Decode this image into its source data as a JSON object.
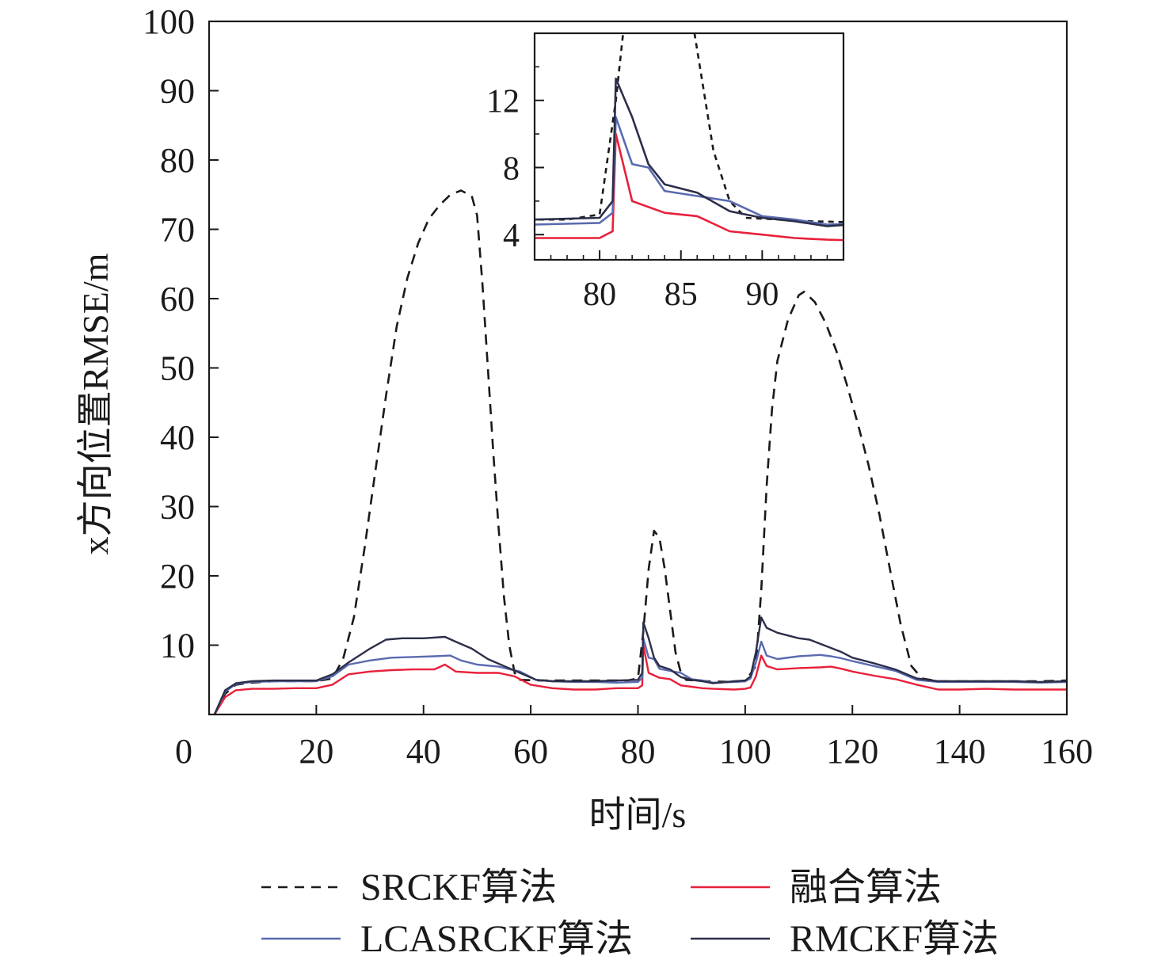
{
  "chart_data": {
    "type": "line",
    "xlabel": "时间/s",
    "ylabel": "x方向位置RMSE/m",
    "xlim": [
      0,
      160
    ],
    "ylim": [
      0,
      100
    ],
    "xticks": [
      0,
      20,
      40,
      60,
      80,
      100,
      120,
      140,
      160
    ],
    "yticks": [
      10,
      20,
      30,
      40,
      50,
      60,
      70,
      80,
      90,
      100
    ],
    "grid": false,
    "legend": {
      "placement": "bottom",
      "columns": 2,
      "entries": [
        {
          "name": "SRCKF算法",
          "color": "#1a1a1a",
          "dash": "dashed"
        },
        {
          "name": "融合算法",
          "color": "#e8203a",
          "dash": "solid"
        },
        {
          "name": "LCASRCKF算法",
          "color": "#5b6bb0",
          "dash": "solid"
        },
        {
          "name": "RMCKF算法",
          "color": "#2c2f4a",
          "dash": "solid"
        }
      ]
    },
    "series": [
      {
        "name": "SRCKF算法",
        "color": "#1a1a1a",
        "dash": "dashed",
        "points": [
          [
            1,
            0
          ],
          [
            3,
            3
          ],
          [
            5,
            4.3
          ],
          [
            8,
            4.6
          ],
          [
            12,
            4.8
          ],
          [
            16,
            4.8
          ],
          [
            20,
            4.8
          ],
          [
            23,
            5.2
          ],
          [
            25,
            8
          ],
          [
            27,
            14
          ],
          [
            29,
            24
          ],
          [
            31,
            35
          ],
          [
            33,
            46
          ],
          [
            35,
            56
          ],
          [
            37,
            63
          ],
          [
            39,
            68
          ],
          [
            41,
            71.5
          ],
          [
            43,
            73.5
          ],
          [
            45,
            75
          ],
          [
            47,
            75.6
          ],
          [
            49,
            74.8
          ],
          [
            50,
            72
          ],
          [
            51,
            62
          ],
          [
            52,
            50
          ],
          [
            53,
            38
          ],
          [
            54,
            27
          ],
          [
            55,
            17
          ],
          [
            56,
            10
          ],
          [
            57,
            6
          ],
          [
            58,
            5
          ],
          [
            62,
            4.9
          ],
          [
            66,
            4.9
          ],
          [
            70,
            4.9
          ],
          [
            74,
            4.9
          ],
          [
            78,
            4.9
          ],
          [
            80,
            5.2
          ],
          [
            81,
            12
          ],
          [
            82,
            21
          ],
          [
            83,
            26.5
          ],
          [
            84,
            25.5
          ],
          [
            85,
            21
          ],
          [
            86,
            15
          ],
          [
            87,
            9
          ],
          [
            88,
            6
          ],
          [
            89,
            5
          ],
          [
            93,
            4.8
          ],
          [
            97,
            4.7
          ],
          [
            100,
            4.8
          ],
          [
            102,
            7
          ],
          [
            103,
            18
          ],
          [
            104,
            33
          ],
          [
            105,
            44
          ],
          [
            106,
            51
          ],
          [
            108,
            57
          ],
          [
            110,
            60.5
          ],
          [
            111,
            61
          ],
          [
            113,
            59.5
          ],
          [
            115,
            56.5
          ],
          [
            117,
            52.5
          ],
          [
            119,
            47.5
          ],
          [
            121,
            42
          ],
          [
            123,
            36
          ],
          [
            125,
            29
          ],
          [
            127,
            21
          ],
          [
            129,
            13
          ],
          [
            131,
            7
          ],
          [
            133,
            5.2
          ],
          [
            136,
            4.8
          ],
          [
            140,
            4.8
          ],
          [
            145,
            4.8
          ],
          [
            150,
            4.8
          ],
          [
            155,
            4.8
          ],
          [
            160,
            4.9
          ]
        ]
      },
      {
        "name": "融合算法",
        "color": "#e8203a",
        "dash": "solid",
        "points": [
          [
            1,
            0
          ],
          [
            3,
            2.5
          ],
          [
            5,
            3.5
          ],
          [
            8,
            3.7
          ],
          [
            12,
            3.7
          ],
          [
            16,
            3.8
          ],
          [
            20,
            3.8
          ],
          [
            23,
            4.3
          ],
          [
            26,
            5.8
          ],
          [
            30,
            6.2
          ],
          [
            34,
            6.4
          ],
          [
            38,
            6.5
          ],
          [
            42,
            6.5
          ],
          [
            44,
            7.2
          ],
          [
            46,
            6.2
          ],
          [
            50,
            6
          ],
          [
            54,
            6
          ],
          [
            57,
            5.5
          ],
          [
            60,
            4.3
          ],
          [
            64,
            3.8
          ],
          [
            68,
            3.6
          ],
          [
            72,
            3.6
          ],
          [
            76,
            3.8
          ],
          [
            80,
            3.8
          ],
          [
            80.8,
            4.2
          ],
          [
            81,
            10
          ],
          [
            82,
            6
          ],
          [
            84,
            5.3
          ],
          [
            86,
            5.1
          ],
          [
            88,
            4.2
          ],
          [
            90,
            4.0
          ],
          [
            92,
            3.8
          ],
          [
            94,
            3.7
          ],
          [
            98,
            3.6
          ],
          [
            100,
            3.7
          ],
          [
            101,
            3.9
          ],
          [
            102,
            5.5
          ],
          [
            103,
            8.5
          ],
          [
            104,
            7
          ],
          [
            106,
            6.5
          ],
          [
            110,
            6.7
          ],
          [
            114,
            6.8
          ],
          [
            116,
            6.9
          ],
          [
            118,
            6.6
          ],
          [
            120,
            6.2
          ],
          [
            124,
            5.6
          ],
          [
            128,
            5.1
          ],
          [
            132,
            4.3
          ],
          [
            136,
            3.6
          ],
          [
            140,
            3.6
          ],
          [
            145,
            3.7
          ],
          [
            150,
            3.6
          ],
          [
            155,
            3.6
          ],
          [
            160,
            3.6
          ]
        ]
      },
      {
        "name": "LCASRCKF算法",
        "color": "#5b6bb0",
        "dash": "solid",
        "points": [
          [
            1,
            0
          ],
          [
            3,
            3.3
          ],
          [
            5,
            4.4
          ],
          [
            8,
            4.7
          ],
          [
            12,
            4.8
          ],
          [
            16,
            4.8
          ],
          [
            20,
            4.8
          ],
          [
            23,
            5.5
          ],
          [
            26,
            7.2
          ],
          [
            30,
            7.8
          ],
          [
            34,
            8.2
          ],
          [
            38,
            8.3
          ],
          [
            42,
            8.4
          ],
          [
            45,
            8.5
          ],
          [
            47,
            7.8
          ],
          [
            50,
            7.2
          ],
          [
            54,
            6.9
          ],
          [
            58,
            6.2
          ],
          [
            61,
            5
          ],
          [
            64,
            4.8
          ],
          [
            68,
            4.7
          ],
          [
            72,
            4.7
          ],
          [
            76,
            4.6
          ],
          [
            80,
            4.7
          ],
          [
            80.8,
            5.3
          ],
          [
            81,
            11
          ],
          [
            82,
            8.2
          ],
          [
            83,
            8.0
          ],
          [
            84,
            6.6
          ],
          [
            86,
            6.3
          ],
          [
            88,
            6.0
          ],
          [
            90,
            5.1
          ],
          [
            92,
            4.9
          ],
          [
            94,
            4.6
          ],
          [
            98,
            4.7
          ],
          [
            100,
            4.8
          ],
          [
            101,
            5.2
          ],
          [
            102,
            7.5
          ],
          [
            103,
            10.5
          ],
          [
            104,
            8.5
          ],
          [
            106,
            8
          ],
          [
            110,
            8.4
          ],
          [
            114,
            8.6
          ],
          [
            116,
            8.4
          ],
          [
            118,
            8.1
          ],
          [
            120,
            7.7
          ],
          [
            124,
            7.0
          ],
          [
            128,
            6.3
          ],
          [
            132,
            5.0
          ],
          [
            136,
            4.7
          ],
          [
            140,
            4.7
          ],
          [
            145,
            4.7
          ],
          [
            150,
            4.7
          ],
          [
            155,
            4.6
          ],
          [
            160,
            4.7
          ]
        ]
      },
      {
        "name": "RMCKF算法",
        "color": "#2c2f4a",
        "dash": "solid",
        "points": [
          [
            1,
            0
          ],
          [
            3,
            3.5
          ],
          [
            5,
            4.5
          ],
          [
            8,
            4.8
          ],
          [
            12,
            4.9
          ],
          [
            16,
            4.9
          ],
          [
            20,
            4.9
          ],
          [
            23,
            5.8
          ],
          [
            26,
            7.5
          ],
          [
            30,
            9.5
          ],
          [
            33,
            10.8
          ],
          [
            36,
            11
          ],
          [
            40,
            11
          ],
          [
            44,
            11.2
          ],
          [
            46,
            10.5
          ],
          [
            49,
            9.5
          ],
          [
            52,
            8
          ],
          [
            55,
            7
          ],
          [
            58,
            6
          ],
          [
            61,
            5
          ],
          [
            64,
            4.8
          ],
          [
            68,
            4.8
          ],
          [
            72,
            4.8
          ],
          [
            76,
            4.9
          ],
          [
            80,
            5.0
          ],
          [
            80.8,
            6
          ],
          [
            81,
            13.3
          ],
          [
            82,
            11
          ],
          [
            83,
            8.2
          ],
          [
            84,
            7
          ],
          [
            86,
            6.5
          ],
          [
            88,
            5.4
          ],
          [
            90,
            5.0
          ],
          [
            92,
            4.8
          ],
          [
            94,
            4.5
          ],
          [
            98,
            4.8
          ],
          [
            100,
            4.9
          ],
          [
            101,
            5.5
          ],
          [
            102,
            9
          ],
          [
            103,
            14
          ],
          [
            104,
            12.5
          ],
          [
            106,
            11.8
          ],
          [
            110,
            11
          ],
          [
            112,
            10.8
          ],
          [
            114,
            10.2
          ],
          [
            116,
            9.6
          ],
          [
            118,
            9
          ],
          [
            120,
            8.2
          ],
          [
            124,
            7.4
          ],
          [
            128,
            6.5
          ],
          [
            132,
            5.2
          ],
          [
            136,
            4.8
          ],
          [
            140,
            4.8
          ],
          [
            145,
            4.8
          ],
          [
            150,
            4.8
          ],
          [
            155,
            4.7
          ],
          [
            160,
            4.8
          ]
        ]
      }
    ],
    "inset": {
      "xlim": [
        76,
        95
      ],
      "ylim": [
        2.5,
        16
      ],
      "xticks": [
        80,
        85,
        90
      ],
      "yticks": [
        4,
        8,
        12
      ],
      "minor_xticks": [
        77,
        78,
        79,
        81,
        82,
        83,
        84,
        86,
        87,
        88,
        89,
        91,
        92,
        93,
        94
      ],
      "minor_yticks": [
        6,
        10,
        14
      ]
    }
  }
}
